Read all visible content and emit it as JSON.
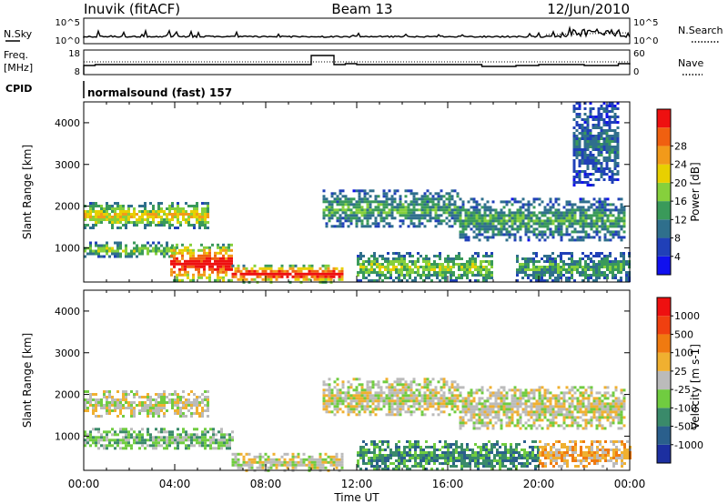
{
  "header": {
    "station": "Inuvik (fitACF)",
    "beam": "Beam 13",
    "date": "12/Jun/2010"
  },
  "nsky_panel": {
    "left_label": "N.Sky",
    "right_label": "N.Search",
    "ticks": [
      "10^5",
      "10^0"
    ]
  },
  "freq_panel": {
    "left_label_1": "Freq.",
    "left_label_2": "[MHz]",
    "left_ticks": [
      "18",
      "8"
    ],
    "right_label": "Nave",
    "right_ticks": [
      "60",
      "0"
    ]
  },
  "cpid": {
    "label": "CPID",
    "value": "normalsound (fast) 157"
  },
  "chart_data": [
    {
      "type": "heatmap",
      "panel": "power",
      "ylabel": "Slant Range [km]",
      "xlabel": "",
      "x_ticks": [
        "00:00",
        "04:00",
        "08:00",
        "12:00",
        "16:00",
        "20:00",
        "00:00"
      ],
      "y_ticks": [
        "1000",
        "2000",
        "3000",
        "4000"
      ],
      "ylim": [
        180,
        4500
      ],
      "xlim_hours": [
        0,
        24
      ],
      "colorbar": {
        "label": "Power [dB]",
        "ticks": [
          "4",
          "8",
          "12",
          "16",
          "20",
          "24",
          "28"
        ],
        "colors": [
          "#1010ee",
          "#2040b8",
          "#2f6f8c",
          "#3a9a5a",
          "#86d03c",
          "#e8d000",
          "#f29a1a",
          "#f06010",
          "#ee1010"
        ]
      },
      "echo_bands": [
        {
          "t0": 0.0,
          "t1": 5.5,
          "r0": 1500,
          "r1": 2100,
          "level": 5
        },
        {
          "t0": 0.0,
          "t1": 4.0,
          "r0": 800,
          "r1": 1150,
          "level": 4
        },
        {
          "t0": 3.8,
          "t1": 6.5,
          "r0": 200,
          "r1": 1100,
          "level": 8
        },
        {
          "t0": 6.5,
          "t1": 11.3,
          "r0": 200,
          "r1": 600,
          "level": 8
        },
        {
          "t0": 10.5,
          "t1": 16.5,
          "r0": 1500,
          "r1": 2400,
          "level": 3
        },
        {
          "t0": 12.0,
          "t1": 18.0,
          "r0": 200,
          "r1": 900,
          "level": 4
        },
        {
          "t0": 16.5,
          "t1": 23.8,
          "r0": 1200,
          "r1": 2200,
          "level": 3
        },
        {
          "t0": 19.0,
          "t1": 24.0,
          "r0": 200,
          "r1": 900,
          "level": 3
        },
        {
          "t0": 21.5,
          "t1": 23.5,
          "r0": 2500,
          "r1": 4500,
          "level": 2
        }
      ]
    },
    {
      "type": "heatmap",
      "panel": "velocity",
      "ylabel": "Slant Range [km]",
      "xlabel": "Time UT",
      "x_ticks": [
        "00:00",
        "04:00",
        "08:00",
        "12:00",
        "16:00",
        "20:00",
        "00:00"
      ],
      "y_ticks": [
        "1000",
        "2000",
        "3000",
        "4000"
      ],
      "ylim": [
        180,
        4500
      ],
      "xlim_hours": [
        0,
        24
      ],
      "colorbar": {
        "label": "Velocity [m s-1]",
        "ticks": [
          "1000",
          "500",
          "100",
          "25",
          "-25",
          "-100",
          "-500",
          "-1000"
        ],
        "colors": [
          "#1c2fa0",
          "#2a5f8c",
          "#3a8a6a",
          "#70cc40",
          "#bbbbbb",
          "#f0b030",
          "#f07a10",
          "#f04010",
          "#ee1010"
        ]
      },
      "echo_bands": [
        {
          "t0": 0.0,
          "t1": 5.5,
          "r0": 1500,
          "r1": 2100,
          "level": 4
        },
        {
          "t0": 0.0,
          "t1": 6.5,
          "r0": 700,
          "r1": 1200,
          "level": 3
        },
        {
          "t0": 6.5,
          "t1": 11.3,
          "r0": 200,
          "r1": 600,
          "level": 4
        },
        {
          "t0": 10.5,
          "t1": 16.5,
          "r0": 1500,
          "r1": 2400,
          "level": 4
        },
        {
          "t0": 12.0,
          "t1": 20.0,
          "r0": 200,
          "r1": 900,
          "level": 2
        },
        {
          "t0": 16.5,
          "t1": 23.8,
          "r0": 1200,
          "r1": 2200,
          "level": 4
        },
        {
          "t0": 20.0,
          "t1": 24.0,
          "r0": 300,
          "r1": 900,
          "level": 5
        }
      ]
    }
  ]
}
